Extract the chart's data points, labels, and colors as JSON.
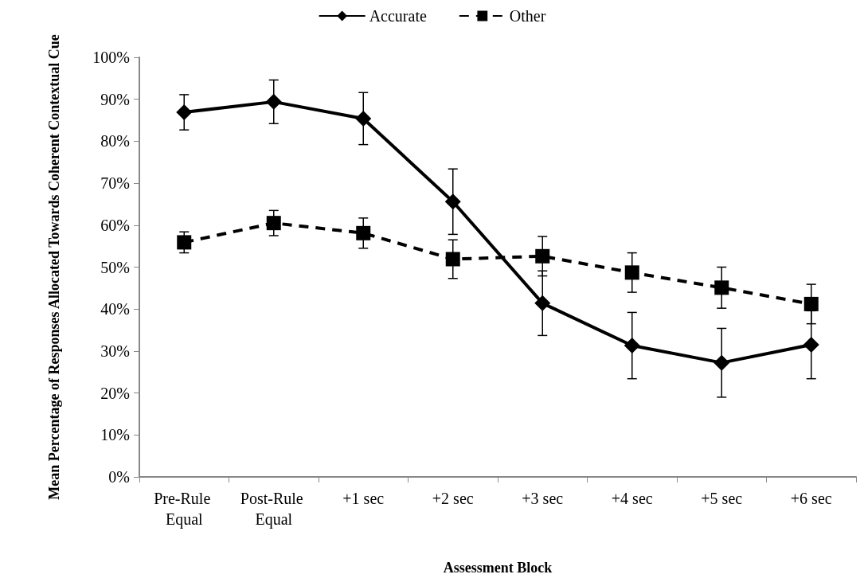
{
  "chart_data": {
    "type": "line",
    "xlabel": "Assessment Block",
    "ylabel": "Mean Percentage of Responses Allocated Towards Coherent Contextual Cue",
    "categories": [
      "Pre-Rule Equal",
      "Post-Rule Equal",
      "+1 sec",
      "+2 sec",
      "+3 sec",
      "+4 sec",
      "+5 sec",
      "+6 sec"
    ],
    "series": [
      {
        "name": "Accurate",
        "color": "#000000",
        "marker": "diamond",
        "line_style": "solid",
        "values": [
          86.9,
          89.4,
          85.4,
          65.6,
          41.4,
          31.3,
          27.2,
          31.5
        ],
        "errors": [
          4.2,
          5.2,
          6.2,
          7.8,
          7.7,
          7.9,
          8.2,
          8.1
        ]
      },
      {
        "name": "Other",
        "color": "#000000",
        "marker": "square",
        "line_style": "dashed",
        "values": [
          55.9,
          60.5,
          58.1,
          51.9,
          52.6,
          48.7,
          45.1,
          41.2
        ],
        "errors": [
          2.5,
          3.0,
          3.6,
          4.6,
          4.7,
          4.7,
          4.9,
          4.7
        ]
      }
    ],
    "ylim": [
      0,
      100
    ],
    "yticks": [
      {
        "value": 0,
        "label": "0%"
      },
      {
        "value": 10,
        "label": "10%"
      },
      {
        "value": 20,
        "label": "20%"
      },
      {
        "value": 30,
        "label": "30%"
      },
      {
        "value": 40,
        "label": "40%"
      },
      {
        "value": 50,
        "label": "50%"
      },
      {
        "value": 60,
        "label": "60%"
      },
      {
        "value": 70,
        "label": "70%"
      },
      {
        "value": 80,
        "label": "80%"
      },
      {
        "value": 90,
        "label": "90%"
      },
      {
        "value": 100,
        "label": "100%"
      }
    ],
    "grid": false,
    "legend": "top"
  }
}
